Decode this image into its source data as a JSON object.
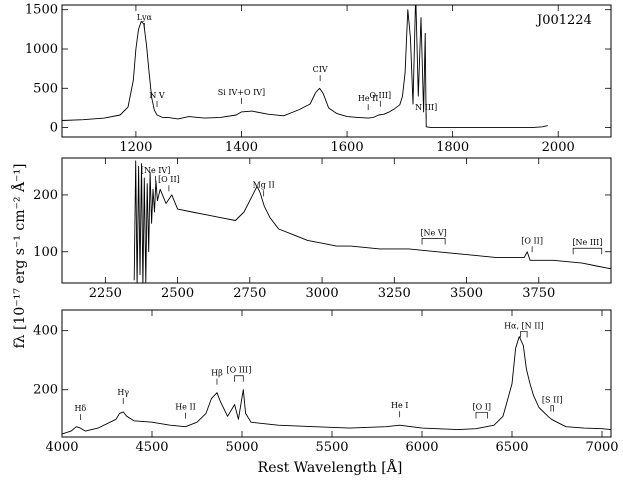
{
  "figure": {
    "object_name": "J001224",
    "x_axis_label": "Rest Wavelength [Å]",
    "y_axis_label": "fλ [10⁻¹⁷ erg s⁻¹ cm⁻² Å⁻¹]"
  },
  "chart_data": [
    {
      "type": "line",
      "panel": "top",
      "xlim": [
        1060,
        2100
      ],
      "ylim": [
        -120,
        1560
      ],
      "x_ticks": [
        1200,
        1400,
        1600,
        1800,
        2000
      ],
      "y_ticks": [
        0,
        500,
        1000,
        1500
      ],
      "series": [
        {
          "x": [
            1060,
            1100,
            1140,
            1170,
            1185,
            1195,
            1200,
            1205,
            1210,
            1215,
            1220,
            1225,
            1230,
            1235,
            1240,
            1250,
            1260,
            1280,
            1300,
            1330,
            1360,
            1390,
            1400,
            1420,
            1450,
            1480,
            1510,
            1530,
            1540,
            1548,
            1555,
            1565,
            1580,
            1600,
            1620,
            1640,
            1650,
            1660,
            1670,
            1680,
            1690,
            1700,
            1705,
            1710,
            1715,
            1720,
            1725,
            1730,
            1735,
            1740,
            1745,
            1748,
            1750,
            1760,
            1800,
            1850,
            1900,
            1950,
            1970,
            1980
          ],
          "y": [
            90,
            100,
            120,
            160,
            260,
            600,
            1000,
            1250,
            1350,
            1320,
            1050,
            700,
            380,
            220,
            160,
            130,
            130,
            110,
            140,
            120,
            130,
            160,
            200,
            210,
            170,
            150,
            230,
            300,
            440,
            500,
            430,
            250,
            180,
            140,
            130,
            120,
            130,
            160,
            170,
            200,
            240,
            290,
            400,
            700,
            1500,
            1150,
            300,
            1700,
            400,
            1400,
            200,
            1200,
            10,
            0,
            0,
            0,
            0,
            0,
            10,
            25
          ]
        }
      ],
      "annotations": [
        {
          "label": "Lyα",
          "x": 1216
        },
        {
          "label": "N V",
          "x": 1240
        },
        {
          "label": "Si IV+O IV]",
          "x": 1400
        },
        {
          "label": "CIV",
          "x": 1549
        },
        {
          "label": "He II",
          "x": 1640
        },
        {
          "label": "O III]",
          "x": 1663
        },
        {
          "label": "N III]",
          "x": 1750
        }
      ]
    },
    {
      "type": "line",
      "panel": "middle",
      "xlim": [
        2100,
        4000
      ],
      "ylim": [
        45,
        265
      ],
      "x_ticks": [
        2250,
        2500,
        2750,
        3000,
        3250,
        3500,
        3750
      ],
      "y_ticks": [
        100,
        200
      ],
      "series": [
        {
          "x": [
            2350,
            2355,
            2360,
            2365,
            2370,
            2375,
            2380,
            2385,
            2390,
            2395,
            2400,
            2405,
            2410,
            2415,
            2420,
            2425,
            2430,
            2440,
            2460,
            2480,
            2500,
            2550,
            2600,
            2650,
            2700,
            2730,
            2760,
            2775,
            2785,
            2800,
            2820,
            2850,
            2900,
            2950,
            3000,
            3050,
            3100,
            3200,
            3300,
            3400,
            3500,
            3600,
            3700,
            3710,
            3720,
            3800,
            3900,
            3950,
            4000
          ],
          "y": [
            50,
            260,
            40,
            250,
            60,
            255,
            40,
            230,
            45,
            220,
            100,
            240,
            150,
            210,
            170,
            225,
            190,
            210,
            185,
            200,
            175,
            170,
            165,
            160,
            155,
            170,
            200,
            215,
            205,
            180,
            160,
            140,
            130,
            120,
            115,
            110,
            110,
            105,
            105,
            100,
            95,
            90,
            90,
            100,
            85,
            85,
            80,
            75,
            70
          ]
        }
      ],
      "annotations": [
        {
          "label": "[Ne IV]",
          "x": 2424
        },
        {
          "label": "[O II]",
          "x": 2470
        },
        {
          "label": "Mg II",
          "x": 2798
        },
        {
          "label": "[Ne V]",
          "x": 3426,
          "range": [
            3346,
            3426
          ]
        },
        {
          "label": "[O II]",
          "x": 3727
        },
        {
          "label": "[Ne III]",
          "x": 3869,
          "range": [
            3869,
            3968
          ]
        }
      ]
    },
    {
      "type": "line",
      "panel": "bottom",
      "xlim": [
        4000,
        7050
      ],
      "ylim": [
        40,
        470
      ],
      "x_ticks": [
        4000,
        4500,
        5000,
        5500,
        6000,
        6500,
        7000
      ],
      "y_ticks": [
        200,
        400
      ],
      "series": [
        {
          "x": [
            4000,
            4050,
            4080,
            4102,
            4130,
            4200,
            4300,
            4320,
            4340,
            4360,
            4400,
            4500,
            4600,
            4686,
            4750,
            4800,
            4830,
            4861,
            4880,
            4920,
            4959,
            4980,
            5007,
            5020,
            5050,
            5200,
            5400,
            5600,
            5800,
            5876,
            6000,
            6200,
            6300,
            6400,
            6450,
            6500,
            6520,
            6540,
            6563,
            6580,
            6600,
            6620,
            6650,
            6700,
            6720,
            6750,
            6800,
            6900,
            7000,
            7050
          ],
          "y": [
            50,
            60,
            75,
            70,
            60,
            70,
            100,
            120,
            125,
            110,
            95,
            90,
            80,
            75,
            90,
            120,
            170,
            190,
            160,
            110,
            150,
            100,
            200,
            120,
            90,
            80,
            75,
            70,
            75,
            80,
            70,
            65,
            68,
            80,
            110,
            220,
            340,
            380,
            350,
            270,
            220,
            180,
            140,
            110,
            100,
            90,
            75,
            70,
            68,
            65
          ]
        }
      ],
      "annotations": [
        {
          "label": "Hδ",
          "x": 4102
        },
        {
          "label": "Hγ",
          "x": 4340
        },
        {
          "label": "He II",
          "x": 4686
        },
        {
          "label": "Hβ",
          "x": 4861
        },
        {
          "label": "[O III]",
          "x": 5007,
          "range": [
            4959,
            5007
          ]
        },
        {
          "label": "He I",
          "x": 5876
        },
        {
          "label": "[O I]",
          "x": 6364,
          "range": [
            6300,
            6364
          ]
        },
        {
          "label": "Hα, [N II]",
          "x": 6563,
          "range": [
            6548,
            6584
          ]
        },
        {
          "label": "[S II]",
          "x": 6724,
          "range": [
            6716,
            6731
          ]
        }
      ]
    }
  ]
}
